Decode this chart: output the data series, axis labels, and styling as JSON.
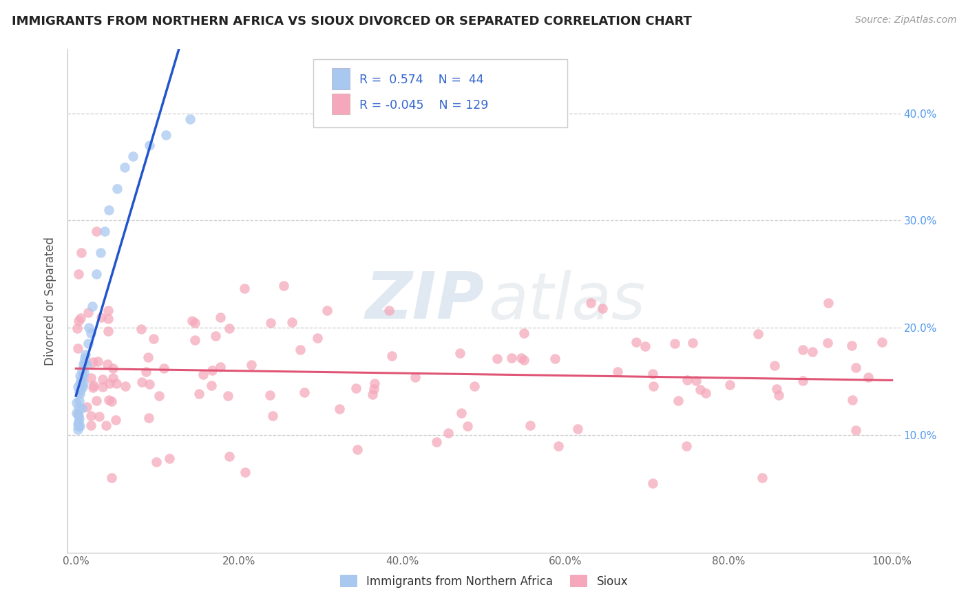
{
  "title": "IMMIGRANTS FROM NORTHERN AFRICA VS SIOUX DIVORCED OR SEPARATED CORRELATION CHART",
  "source": "Source: ZipAtlas.com",
  "ylabel": "Divorced or Separated",
  "legend_label1": "Immigrants from Northern Africa",
  "legend_label2": "Sioux",
  "R1": 0.574,
  "N1": 44,
  "R2": -0.045,
  "N2": 129,
  "color_blue": "#A8C8F0",
  "color_pink": "#F5A8BB",
  "line_blue": "#2255CC",
  "line_pink": "#E05575",
  "background": "#FFFFFF",
  "watermark_zip": "ZIP",
  "watermark_atlas": "atlas",
  "ytick_color": "#5599EE"
}
